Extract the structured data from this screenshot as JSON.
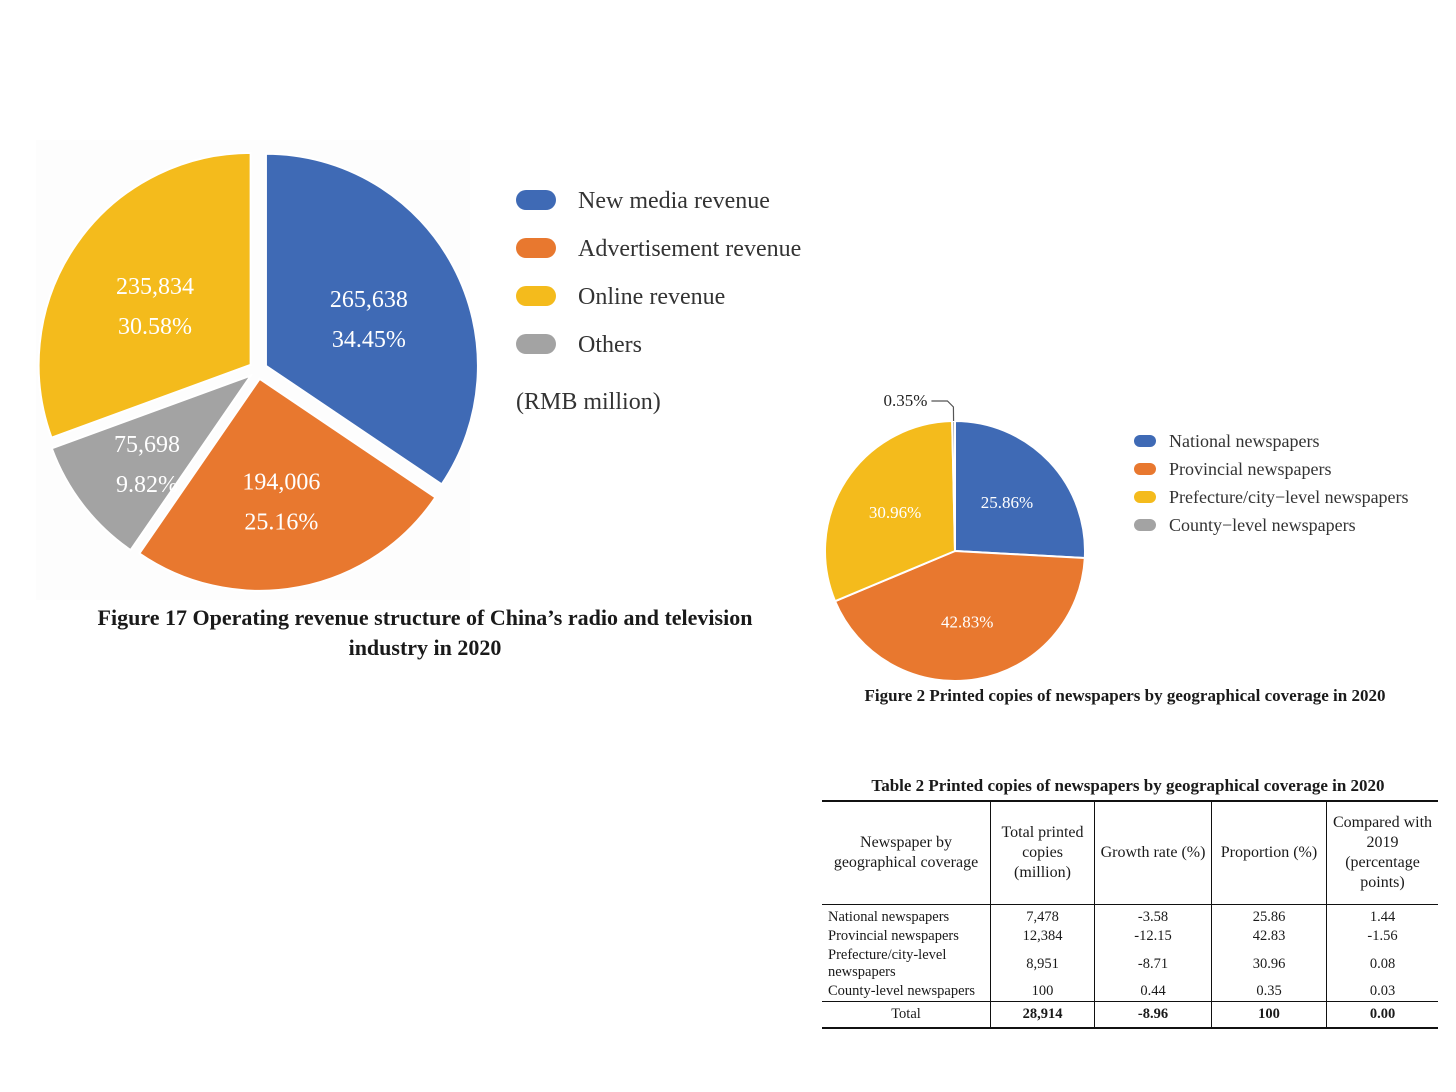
{
  "chart_data": [
    {
      "type": "pie",
      "title": "Figure 17 Operating revenue structure of China’s radio and television industry in 2020",
      "unit_note": "(RMB million)",
      "slices": [
        {
          "label": "New media revenue",
          "value": 265638,
          "value_label": "265,638",
          "percent_label": "34.45%",
          "color": "#3F6AB5"
        },
        {
          "label": "Advertisement revenue",
          "value": 194006,
          "value_label": "194,006",
          "percent_label": "25.16%",
          "color": "#E8782F"
        },
        {
          "label": "Others",
          "value": 75698,
          "value_label": "75,698",
          "percent_label": "9.82%",
          "color": "#A3A3A3"
        },
        {
          "label": "Online revenue",
          "value": 235834,
          "value_label": "235,834",
          "percent_label": "30.58%",
          "color": "#F4BB1C"
        }
      ],
      "legend": [
        {
          "label": "New media revenue",
          "color": "#3F6AB5"
        },
        {
          "label": "Advertisement revenue",
          "color": "#E8782F"
        },
        {
          "label": "Online revenue",
          "color": "#F4BB1C"
        },
        {
          "label": "Others",
          "color": "#A3A3A3"
        }
      ],
      "legend_position": "right"
    },
    {
      "type": "pie",
      "title": "Figure 2 Printed copies of newspapers by geographical coverage in 2020",
      "slices": [
        {
          "label": "National newspapers",
          "value": 25.86,
          "percent_label": "25.86%",
          "color": "#3F6AB5"
        },
        {
          "label": "Provincial newspapers",
          "value": 42.83,
          "percent_label": "42.83%",
          "color": "#E8782F"
        },
        {
          "label": "Prefecture/city−level newspapers",
          "value": 30.96,
          "percent_label": "30.96%",
          "color": "#F4BB1C"
        },
        {
          "label": "County−level newspapers",
          "value": 0.35,
          "percent_label": "0.35%",
          "color": "#A3A3A3"
        }
      ],
      "legend": [
        {
          "label": "National newspapers",
          "color": "#3F6AB5"
        },
        {
          "label": "Provincial newspapers",
          "color": "#E8782F"
        },
        {
          "label": "Prefecture/city−level newspapers",
          "color": "#F4BB1C"
        },
        {
          "label": "County−level newspapers",
          "color": "#A3A3A3"
        }
      ],
      "legend_position": "right"
    },
    {
      "type": "table",
      "title": "Table 2 Printed copies of newspapers by geographical coverage in 2020",
      "columns": [
        "Newspaper by geographical coverage",
        "Total printed copies (million)",
        "Growth rate (%)",
        "Proportion (%)",
        "Compared with 2019 (percentage points)"
      ],
      "rows": [
        [
          "National newspapers",
          "7,478",
          "-3.58",
          "25.86",
          "1.44"
        ],
        [
          "Provincial newspapers",
          "12,384",
          "-12.15",
          "42.83",
          "-1.56"
        ],
        [
          "Prefecture/city-level newspapers",
          "8,951",
          "-8.71",
          "30.96",
          "0.08"
        ],
        [
          "County-level newspapers",
          "100",
          "0.44",
          "0.35",
          "0.03"
        ]
      ],
      "total_row": [
        "Total",
        "28,914",
        "-8.96",
        "100",
        "0.00"
      ]
    }
  ]
}
